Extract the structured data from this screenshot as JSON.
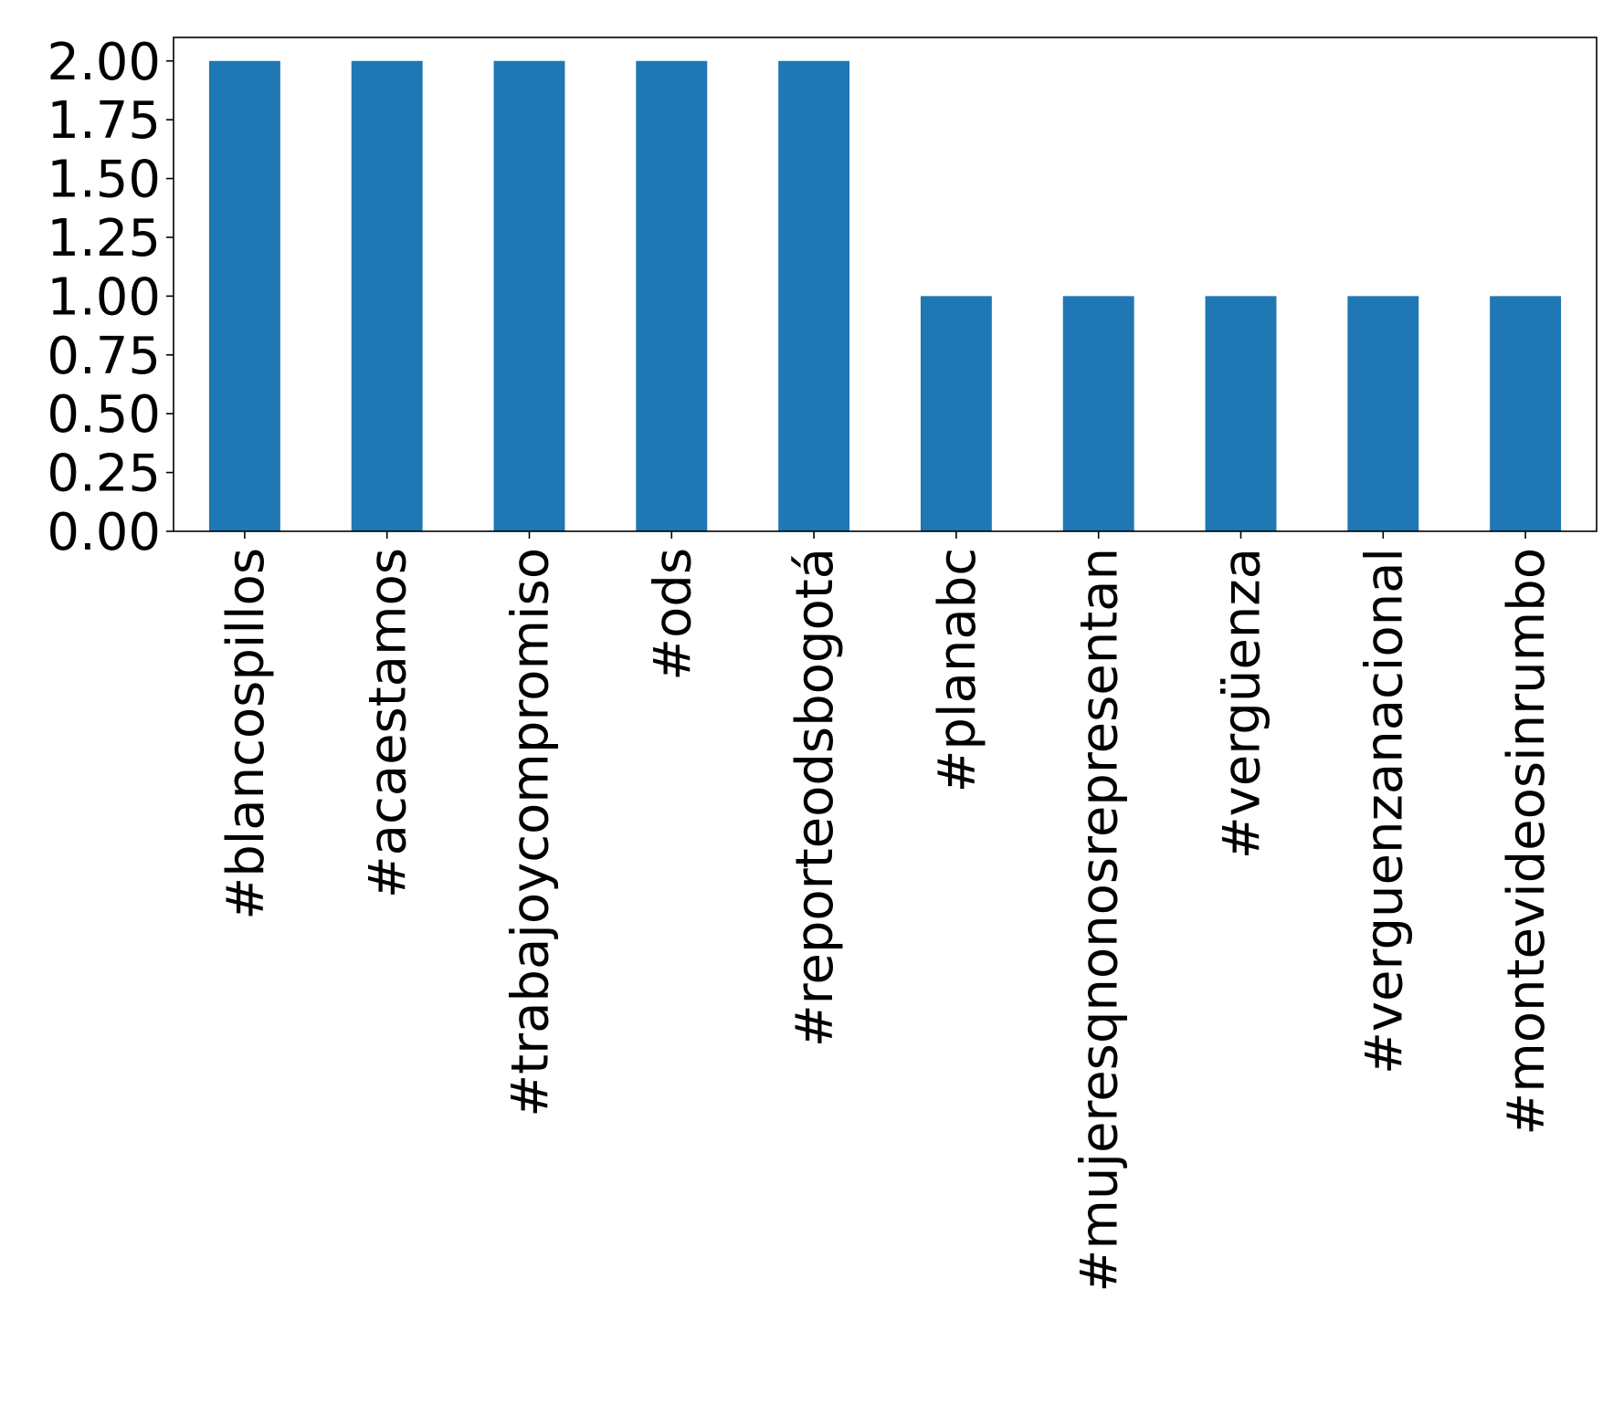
{
  "chart_data": {
    "type": "bar",
    "title": "",
    "xlabel": "",
    "ylabel": "",
    "categories": [
      "#blancospillos",
      "#acaestamos",
      "#trabajoycompromiso",
      "#ods",
      "#reporteodsbogotá",
      "#planabc",
      "#mujeresqnonosrepresentan",
      "#vergüenza",
      "#verguenzanacional",
      "#montevideosinrumbo"
    ],
    "values": [
      2,
      2,
      2,
      2,
      2,
      1,
      1,
      1,
      1,
      1
    ],
    "ylim": [
      0,
      2.1
    ],
    "yticks": [
      "0.00",
      "0.25",
      "0.50",
      "0.75",
      "1.00",
      "1.25",
      "1.50",
      "1.75",
      "2.00"
    ],
    "bar_color": "#1f77b4",
    "grid": false,
    "legend": "none"
  }
}
